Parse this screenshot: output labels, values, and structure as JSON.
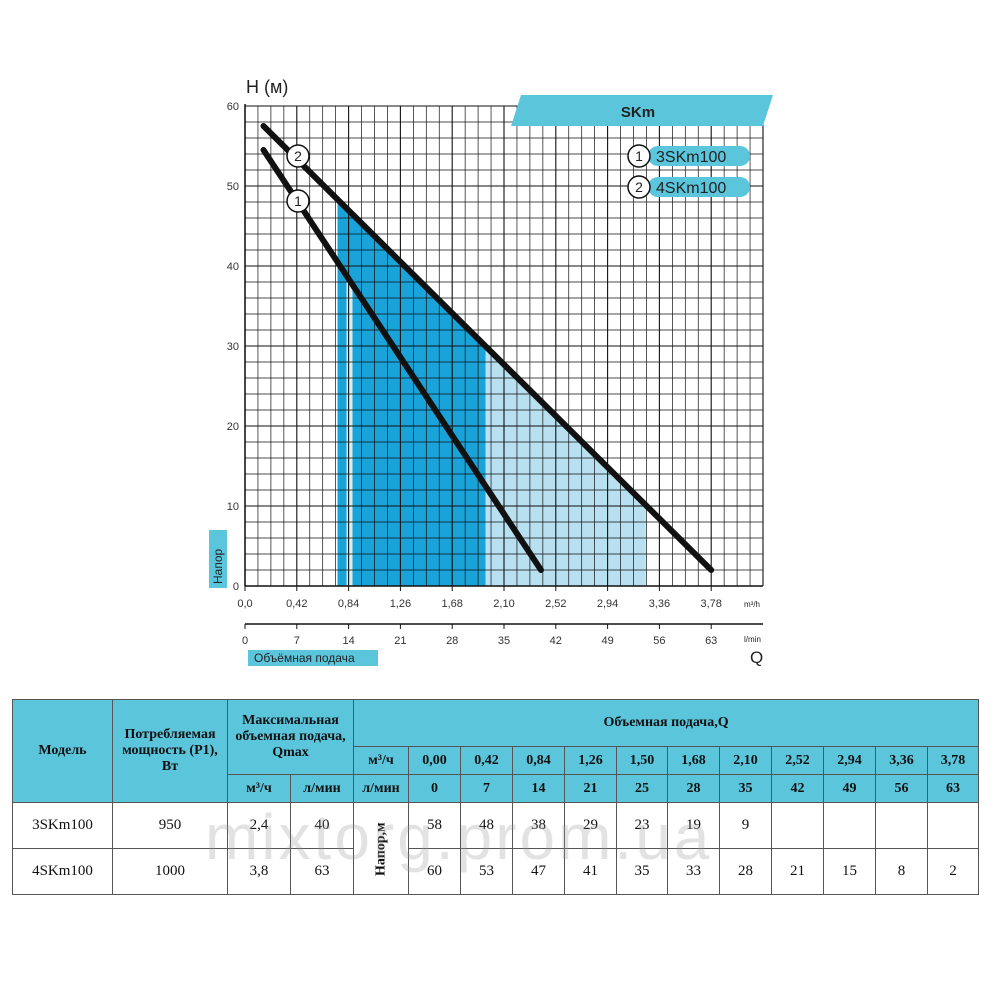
{
  "chart_data": {
    "type": "line",
    "y_axis_label": "H (м)",
    "y_side_label": "Напор",
    "yticks": [
      0,
      10,
      20,
      30,
      40,
      50,
      60
    ],
    "ylim": [
      0,
      60
    ],
    "x_unit_top": "m³/h",
    "xticks_top": [
      "0,0",
      "0,42",
      "0,84",
      "1,26",
      "1,68",
      "2,10",
      "2,52",
      "2,94",
      "3,36",
      "3,78"
    ],
    "x_unit_bottom": "l/min",
    "xticks_bottom": [
      "0",
      "7",
      "14",
      "21",
      "28",
      "35",
      "42",
      "49",
      "56",
      "63"
    ],
    "x_axis_letter": "Q",
    "x_side_label": "Объёмная подача",
    "xlim": [
      0,
      4.2
    ],
    "series_title": "SKm",
    "legend_position": "top-right",
    "series": [
      {
        "marker": "1",
        "name": "3SKm100",
        "x": [
          0.15,
          2.4
        ],
        "y": [
          54.5,
          2
        ]
      },
      {
        "marker": "2",
        "name": "4SKm100",
        "x": [
          0.15,
          3.78
        ],
        "y": [
          57.5,
          2
        ]
      }
    ],
    "shaded_regions": [
      {
        "x": [
          0.75,
          1.95
        ],
        "y_top_at_left": 48,
        "color": "#1aa3d9"
      },
      {
        "x": [
          0.75,
          3.25
        ],
        "y_top_at_left": 48,
        "color": "#b8e0f0"
      }
    ],
    "grid": true
  },
  "table": {
    "headers": {
      "model": "Модель",
      "power": "Потребляемая мощность (P1), Вт",
      "qmax": "Максимальная объемная подача, Qmax",
      "flow": "Объемная подача,Q",
      "unit_m3": "м³/ч",
      "unit_lmin": "л/мин",
      "head": "Напор,м"
    },
    "flow_m3h": [
      "0,00",
      "0,42",
      "0,84",
      "1,26",
      "1,50",
      "1,68",
      "2,10",
      "2,52",
      "2,94",
      "3,36",
      "3,78"
    ],
    "flow_lmin": [
      "0",
      "7",
      "14",
      "21",
      "25",
      "28",
      "35",
      "42",
      "49",
      "56",
      "63"
    ],
    "rows": [
      {
        "model": "3SKm100",
        "power": "950",
        "qmax_m3": "2,4",
        "qmax_l": "40",
        "head": [
          "58",
          "48",
          "38",
          "29",
          "23",
          "19",
          "9",
          "",
          "",
          "",
          ""
        ]
      },
      {
        "model": "4SKm100",
        "power": "1000",
        "qmax_m3": "3,8",
        "qmax_l": "63",
        "head": [
          "60",
          "53",
          "47",
          "41",
          "35",
          "33",
          "28",
          "21",
          "15",
          "8",
          "2"
        ]
      }
    ]
  },
  "watermark": "mixtorg.prom.ua",
  "colors": {
    "accent": "#5bc5dc",
    "deep_blue": "#1aa3d9",
    "light_blue": "#b8e0f0",
    "curve": "#111111"
  }
}
